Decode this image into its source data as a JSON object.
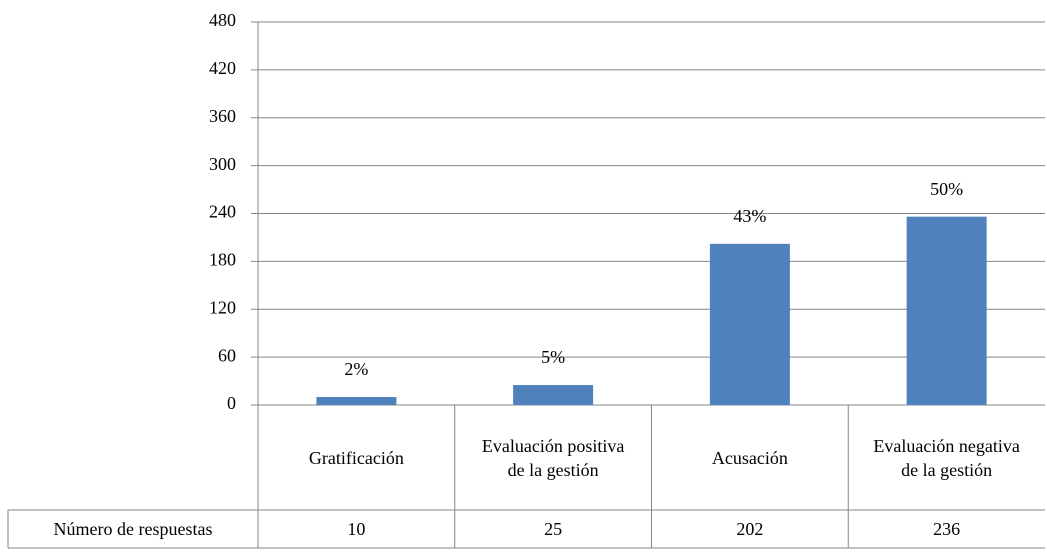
{
  "chart_data": {
    "type": "bar",
    "categories": [
      "Gratificación",
      "Evaluación positiva de la gestión",
      "Acusación",
      "Evaluación negativa de la gestión"
    ],
    "values": [
      10,
      25,
      202,
      236
    ],
    "data_labels": [
      "2%",
      "5%",
      "43%",
      "50%"
    ],
    "table_row_label": "Número de respuestas",
    "color": "#4f81bd",
    "ylim": [
      0,
      480
    ],
    "yticks": [
      0,
      60,
      120,
      180,
      240,
      300,
      360,
      420,
      480
    ],
    "grid": true
  }
}
